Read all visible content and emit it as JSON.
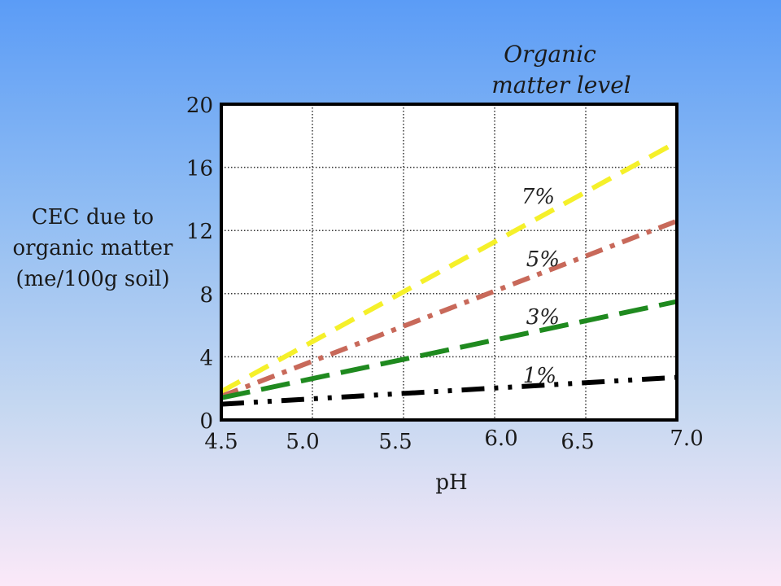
{
  "chart_data": {
    "type": "line",
    "ylabel": [
      "CEC due to",
      "organic matter",
      "(me/100g soil)"
    ],
    "xlabel": "pH",
    "legend_title": [
      "Organic",
      "matter level"
    ],
    "xlim": [
      4.5,
      7.0
    ],
    "ylim": [
      0,
      20
    ],
    "x_ticks": [
      "4.5",
      "5.0",
      "5.5",
      "6.0",
      "6.5",
      "7.0"
    ],
    "y_ticks": [
      "0",
      "4",
      "8",
      "12",
      "16",
      "20"
    ],
    "grid": true,
    "series": [
      {
        "name": "7%",
        "x": [
          4.5,
          7.0
        ],
        "y": [
          1.8,
          17.6
        ],
        "color": "#f5f02a",
        "style": "dashed"
      },
      {
        "name": "5%",
        "x": [
          4.5,
          7.0
        ],
        "y": [
          1.5,
          12.6
        ],
        "color": "#c8695a",
        "style": "dash-dot"
      },
      {
        "name": "3%",
        "x": [
          4.5,
          7.0
        ],
        "y": [
          1.4,
          7.5
        ],
        "color": "#1f8a1f",
        "style": "long-dash"
      },
      {
        "name": "1%",
        "x": [
          4.5,
          7.0
        ],
        "y": [
          1.0,
          2.7
        ],
        "color": "#000000",
        "style": "dash-dot-dot"
      }
    ]
  }
}
